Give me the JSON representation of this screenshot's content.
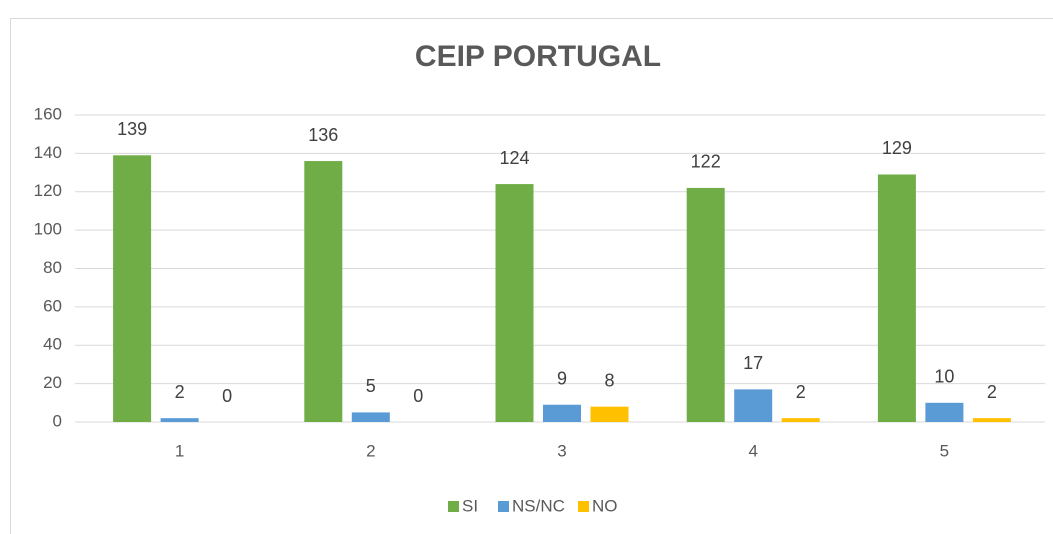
{
  "chart_data": {
    "type": "bar",
    "title": "CEIP PORTUGAL",
    "categories": [
      "1",
      "2",
      "3",
      "4",
      "5"
    ],
    "series": [
      {
        "name": "SI",
        "color": "#70ad47",
        "values": [
          139,
          136,
          124,
          122,
          129
        ]
      },
      {
        "name": "NS/NC",
        "color": "#5b9bd5",
        "values": [
          2,
          5,
          9,
          17,
          10
        ]
      },
      {
        "name": "NO",
        "color": "#ffc000",
        "values": [
          0,
          0,
          8,
          2,
          2
        ]
      }
    ],
    "ylim": [
      0,
      160
    ],
    "yticks": [
      0,
      20,
      40,
      60,
      80,
      100,
      120,
      140,
      160
    ],
    "grid": true,
    "legend": "bottom"
  }
}
